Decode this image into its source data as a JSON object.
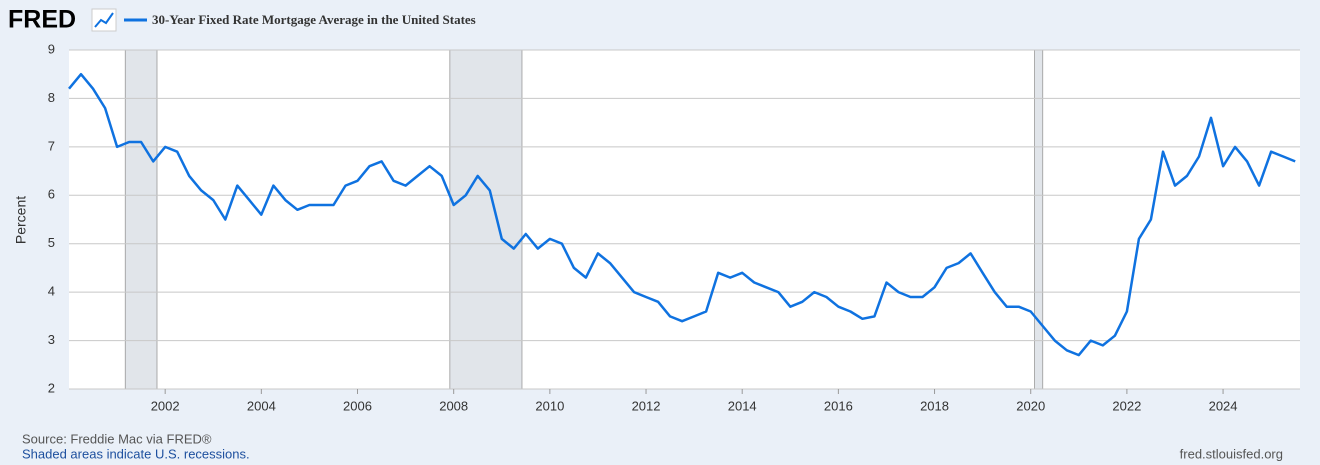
{
  "chart_data": {
    "type": "line",
    "logo": "FRED",
    "title": "30-Year Fixed Rate Mortgage Average in the United States",
    "y_label": "Percent",
    "source": "Source: Freddie Mac via FRED®",
    "note": "Shaded areas indicate U.S. recessions.",
    "site": "fred.stlouisfed.org",
    "xlim": [
      2000,
      2025.6
    ],
    "xticks": [
      2002,
      2004,
      2006,
      2008,
      2010,
      2012,
      2014,
      2016,
      2018,
      2020,
      2022,
      2024
    ],
    "ylim": [
      2,
      9
    ],
    "yticks": [
      2,
      3,
      4,
      5,
      6,
      7,
      8,
      9
    ],
    "grid": true,
    "recessions": [
      [
        2001.17,
        2001.83
      ],
      [
        2007.92,
        2009.42
      ],
      [
        2020.08,
        2020.25
      ]
    ],
    "x": [
      2000,
      2000.25,
      2000.5,
      2000.75,
      2001,
      2001.25,
      2001.5,
      2001.75,
      2002,
      2002.25,
      2002.5,
      2002.75,
      2003,
      2003.25,
      2003.5,
      2003.75,
      2004,
      2004.25,
      2004.5,
      2004.75,
      2005,
      2005.25,
      2005.5,
      2005.75,
      2006,
      2006.25,
      2006.5,
      2006.75,
      2007,
      2007.25,
      2007.5,
      2007.75,
      2008,
      2008.25,
      2008.5,
      2008.75,
      2009,
      2009.25,
      2009.5,
      2009.75,
      2010,
      2010.25,
      2010.5,
      2010.75,
      2011,
      2011.25,
      2011.5,
      2011.75,
      2012,
      2012.25,
      2012.5,
      2012.75,
      2013,
      2013.25,
      2013.5,
      2013.75,
      2014,
      2014.25,
      2014.5,
      2014.75,
      2015,
      2015.25,
      2015.5,
      2015.75,
      2016,
      2016.25,
      2016.5,
      2016.75,
      2017,
      2017.25,
      2017.5,
      2017.75,
      2018,
      2018.25,
      2018.5,
      2018.75,
      2019,
      2019.25,
      2019.5,
      2019.75,
      2020,
      2020.25,
      2020.5,
      2020.75,
      2021,
      2021.25,
      2021.5,
      2021.75,
      2022,
      2022.25,
      2022.5,
      2022.75,
      2023,
      2023.25,
      2023.5,
      2023.75,
      2024,
      2024.25,
      2024.5,
      2024.75,
      2025,
      2025.25,
      2025.5
    ],
    "series": [
      {
        "name": "30-Year Fixed Rate Mortgage Average in the United States",
        "color": "#0f72e0",
        "values": [
          8.2,
          8.5,
          8.2,
          7.8,
          7.0,
          7.1,
          7.1,
          6.7,
          7.0,
          6.9,
          6.4,
          6.1,
          5.9,
          5.5,
          6.2,
          5.9,
          5.6,
          6.2,
          5.9,
          5.7,
          5.8,
          5.8,
          5.8,
          6.2,
          6.3,
          6.6,
          6.7,
          6.3,
          6.2,
          6.4,
          6.6,
          6.4,
          5.8,
          6.0,
          6.4,
          6.1,
          5.1,
          4.9,
          5.2,
          4.9,
          5.1,
          5.0,
          4.5,
          4.3,
          4.8,
          4.6,
          4.3,
          4.0,
          3.9,
          3.8,
          3.5,
          3.4,
          3.5,
          3.6,
          4.4,
          4.3,
          4.4,
          4.2,
          4.1,
          4.0,
          3.7,
          3.8,
          4.0,
          3.9,
          3.7,
          3.6,
          3.45,
          3.5,
          4.2,
          4.0,
          3.9,
          3.9,
          4.1,
          4.5,
          4.6,
          4.8,
          4.4,
          4.0,
          3.7,
          3.7,
          3.6,
          3.3,
          3.0,
          2.8,
          2.7,
          3.0,
          2.9,
          3.1,
          3.6,
          5.1,
          5.5,
          6.9,
          6.2,
          6.4,
          6.8,
          7.6,
          6.6,
          7.0,
          6.7,
          6.2,
          6.9,
          6.8,
          6.7
        ]
      }
    ]
  }
}
